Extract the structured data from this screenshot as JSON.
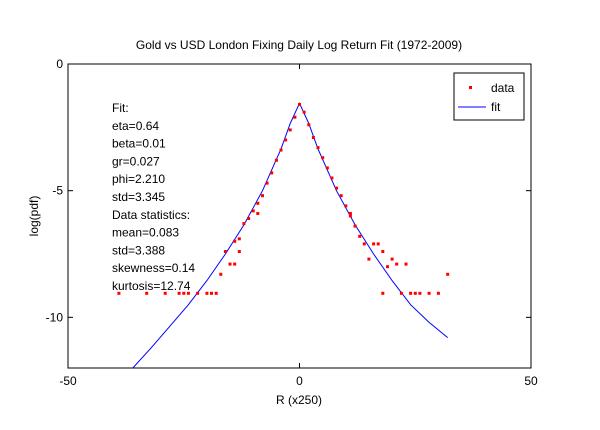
{
  "chart_data": {
    "type": "scatter",
    "title": "Gold vs USD London Fixing Daily Log Return Fit (1972-2009)",
    "xlabel": "R (x250)",
    "ylabel": "log(pdf)",
    "xlim": [
      -50,
      50
    ],
    "ylim": [
      -12,
      0
    ],
    "xticks": [
      -50,
      0,
      50
    ],
    "yticks": [
      0,
      -5,
      -10
    ],
    "grid": false,
    "legend": {
      "placement": "top-right",
      "entries": [
        "data",
        "fit"
      ]
    },
    "annotation_lines": [
      "Fit:",
      "eta=0.64",
      "beta=0.01",
      "gr=0.027",
      "phi=2.210",
      "std=3.345",
      "Data statistics:",
      "mean=0.083",
      "std=3.388",
      "skewness=0.14",
      "kurtosis=12.74"
    ],
    "series": [
      {
        "name": "data",
        "style": "markers",
        "color": "#ff0000",
        "x": [
          -39,
          -33,
          -29,
          -26,
          -25,
          -24,
          -22,
          -20,
          -19,
          -18,
          -17,
          -16,
          -15,
          -14,
          -14,
          -13,
          -13,
          -12,
          -11,
          -10,
          -9,
          -9,
          -8,
          -7,
          -6,
          -5,
          -4,
          -3,
          -2,
          -1,
          0,
          1,
          2,
          3,
          4,
          5,
          6,
          7,
          8,
          9,
          10,
          11,
          11,
          12,
          13,
          14,
          15,
          16,
          17,
          18,
          18,
          19,
          20,
          21,
          22,
          23,
          24,
          25,
          26,
          28,
          30,
          32
        ],
        "y": [
          -9.05,
          -9.05,
          -9.05,
          -9.05,
          -9.05,
          -9.05,
          -9.05,
          -9.05,
          -9.05,
          -9.05,
          -8.3,
          -7.4,
          -7.9,
          -7.9,
          -7.0,
          -7.4,
          -6.9,
          -6.3,
          -6.1,
          -5.8,
          -5.9,
          -5.5,
          -5.2,
          -4.7,
          -4.3,
          -3.8,
          -3.4,
          -3.0,
          -2.6,
          -2.1,
          -1.6,
          -1.9,
          -2.4,
          -2.9,
          -3.3,
          -3.7,
          -4.1,
          -4.5,
          -4.9,
          -5.2,
          -5.6,
          -6.0,
          -5.9,
          -6.4,
          -6.8,
          -7.1,
          -7.7,
          -7.1,
          -7.1,
          -7.4,
          -9.05,
          -8.0,
          -7.7,
          -7.9,
          -9.05,
          -7.9,
          -9.05,
          -9.05,
          -9.05,
          -9.05,
          -9.05,
          -8.3
        ]
      },
      {
        "name": "fit",
        "style": "line",
        "color": "#0000ff",
        "x": [
          -36,
          -32,
          -28,
          -24,
          -20,
          -16,
          -12,
          -8,
          -4,
          -2,
          0,
          2,
          4,
          8,
          12,
          16,
          20,
          24,
          28,
          32
        ],
        "y": [
          -12.0,
          -11.2,
          -10.35,
          -9.5,
          -8.55,
          -7.5,
          -6.35,
          -5.0,
          -3.35,
          -2.35,
          -1.55,
          -2.35,
          -3.35,
          -5.0,
          -6.35,
          -7.5,
          -8.55,
          -9.5,
          -10.2,
          -10.8
        ]
      }
    ]
  }
}
